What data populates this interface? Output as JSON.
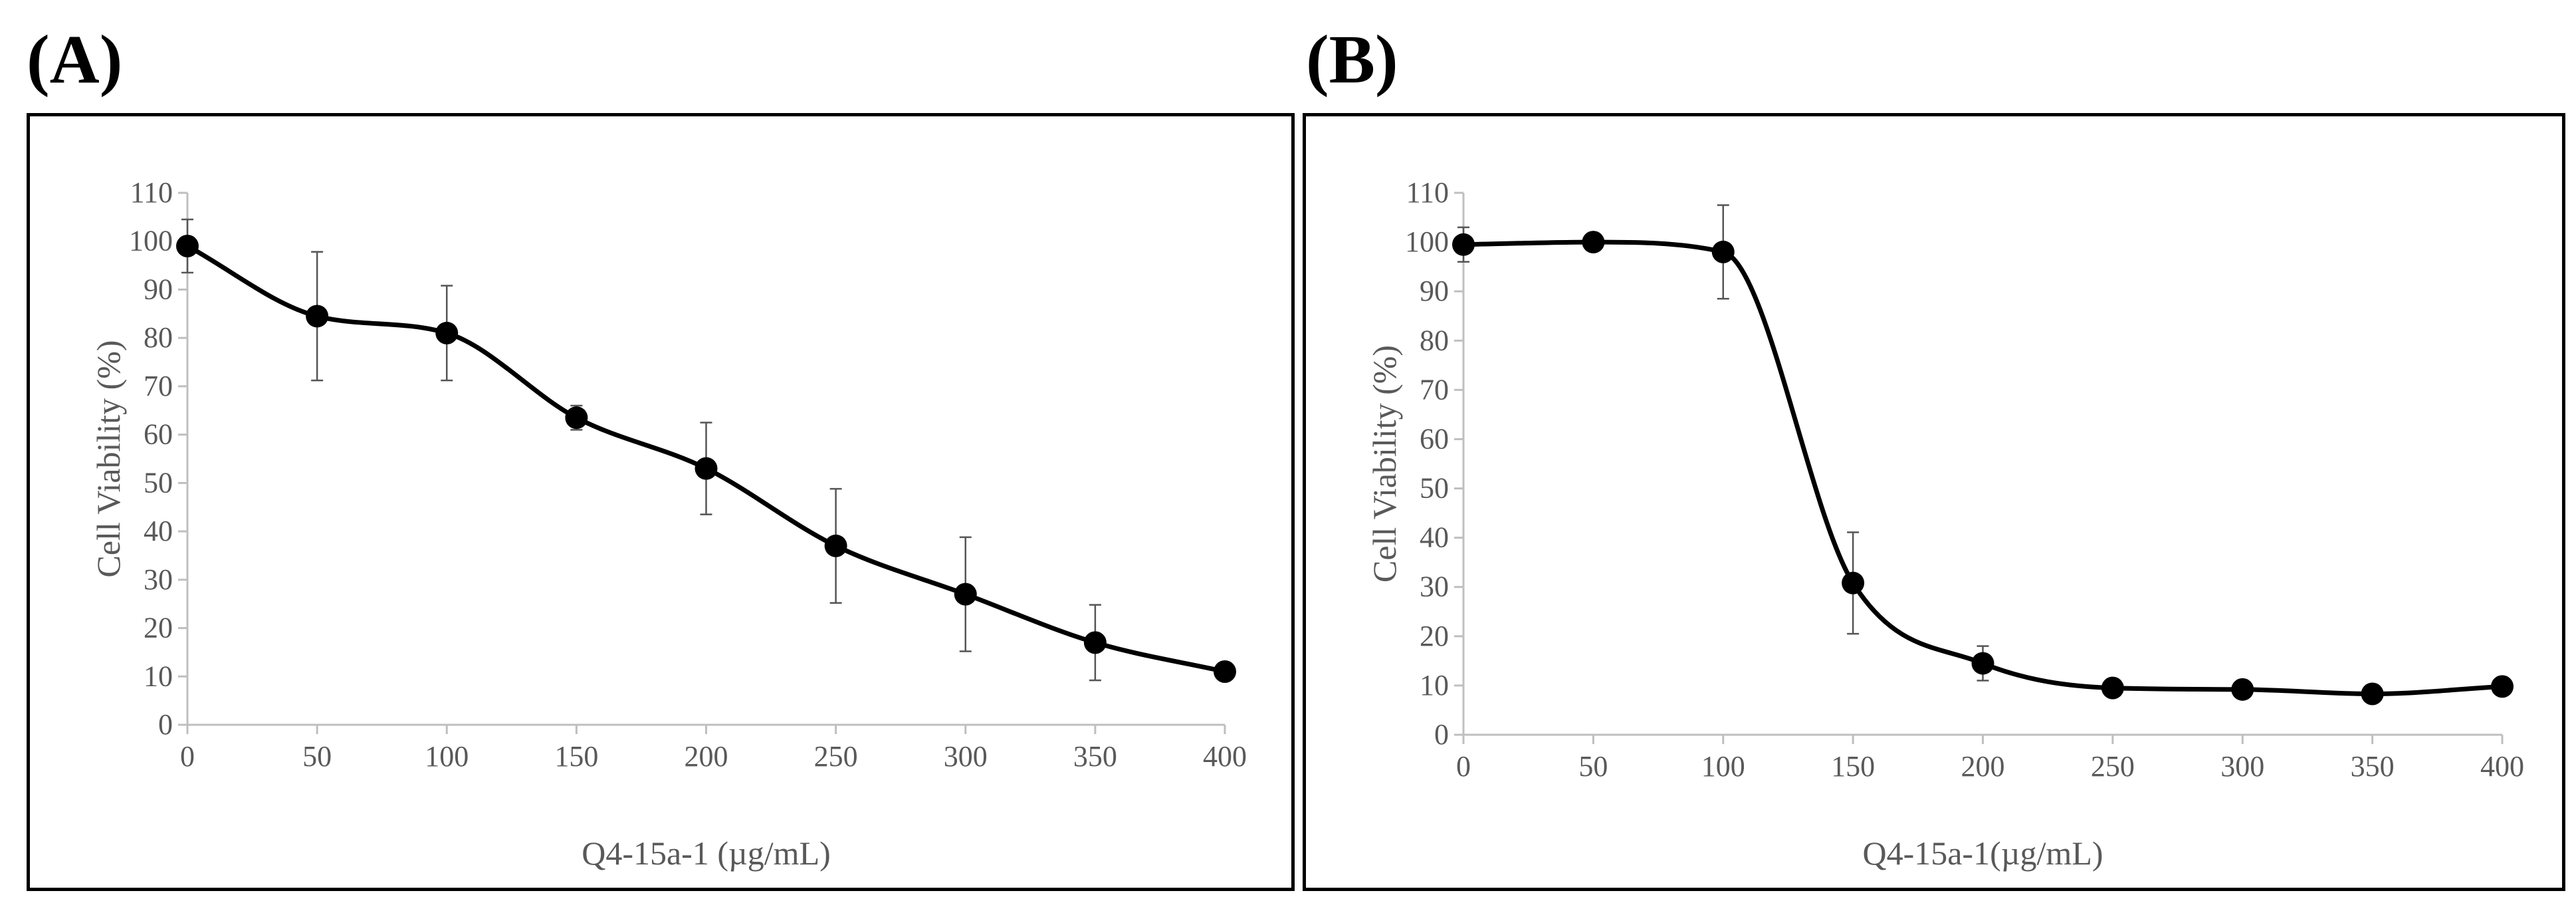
{
  "panels": {
    "a": {
      "label": "(A)"
    },
    "b": {
      "label": "(B)"
    }
  },
  "chart_data": [
    {
      "type": "line",
      "panel": "(A)",
      "title": "",
      "xlabel": "Q4-15a-1 (µg/mL)",
      "ylabel": "Cell Viability (%)",
      "x": [
        0,
        50,
        100,
        150,
        200,
        250,
        300,
        350,
        400
      ],
      "series": [
        {
          "name": "Cell Viability",
          "values": [
            99,
            84.5,
            81,
            63.5,
            53,
            37,
            27,
            17,
            11
          ],
          "errors": [
            5.5,
            13.3,
            9.8,
            2.5,
            9.5,
            11.8,
            11.8,
            7.8,
            1.2
          ]
        }
      ],
      "xlim": [
        0,
        400
      ],
      "ylim": [
        0,
        110
      ],
      "xticks": [
        0,
        50,
        100,
        150,
        200,
        250,
        300,
        350,
        400
      ],
      "yticks": [
        0,
        10,
        20,
        30,
        40,
        50,
        60,
        70,
        80,
        90,
        100,
        110
      ],
      "grid": false,
      "legend": "none",
      "color": "#000000"
    },
    {
      "type": "line",
      "panel": "(B)",
      "title": "",
      "xlabel": "Q4-15a-1(µg/mL)",
      "ylabel": "Cell Viability (%)",
      "x": [
        0,
        50,
        100,
        150,
        200,
        250,
        300,
        350,
        400
      ],
      "series": [
        {
          "name": "Cell Viability",
          "values": [
            99.5,
            100,
            98,
            30.8,
            14.5,
            9.5,
            9.2,
            8.3,
            9.8
          ],
          "errors": [
            3.5,
            0.5,
            9.5,
            10.3,
            3.5,
            0.8,
            0.7,
            0.6,
            0.8
          ]
        }
      ],
      "xlim": [
        0,
        400
      ],
      "ylim": [
        0,
        110
      ],
      "xticks": [
        0,
        50,
        100,
        150,
        200,
        250,
        300,
        350,
        400
      ],
      "yticks": [
        0,
        10,
        20,
        30,
        40,
        50,
        60,
        70,
        80,
        90,
        100,
        110
      ],
      "grid": false,
      "legend": "none",
      "color": "#000000"
    }
  ]
}
